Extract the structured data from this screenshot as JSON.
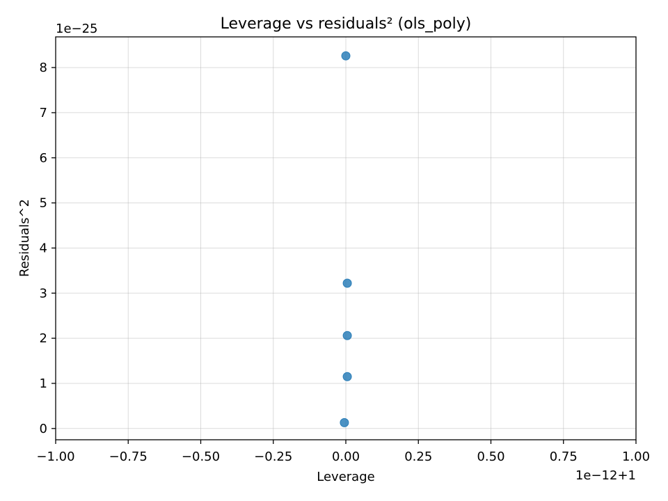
{
  "chart_data": {
    "type": "scatter",
    "title": "Leverage vs residuals² (ols_poly)",
    "xlabel": "Leverage",
    "ylabel": "Residuals^2",
    "x_offset_label": "1e−12+1",
    "y_offset_label": "1e−25",
    "xlim": [
      -1.0,
      1.0
    ],
    "ylim": [
      -0.25,
      8.68
    ],
    "x_ticks": [
      -1.0,
      -0.75,
      -0.5,
      -0.25,
      0.0,
      0.25,
      0.5,
      0.75,
      1.0
    ],
    "x_tick_labels": [
      "−1.00",
      "−0.75",
      "−0.50",
      "−0.25",
      "0.00",
      "0.25",
      "0.50",
      "0.75",
      "1.00"
    ],
    "y_ticks": [
      0,
      1,
      2,
      3,
      4,
      5,
      6,
      7,
      8
    ],
    "y_tick_labels": [
      "0",
      "1",
      "2",
      "3",
      "4",
      "5",
      "6",
      "7",
      "8"
    ],
    "grid": true,
    "point_color": "#1f77b4",
    "series": [
      {
        "x": [
          0.0,
          0.005,
          0.005,
          0.005,
          -0.005
        ],
        "y": [
          8.26,
          3.22,
          2.06,
          1.15,
          0.13
        ]
      }
    ]
  }
}
